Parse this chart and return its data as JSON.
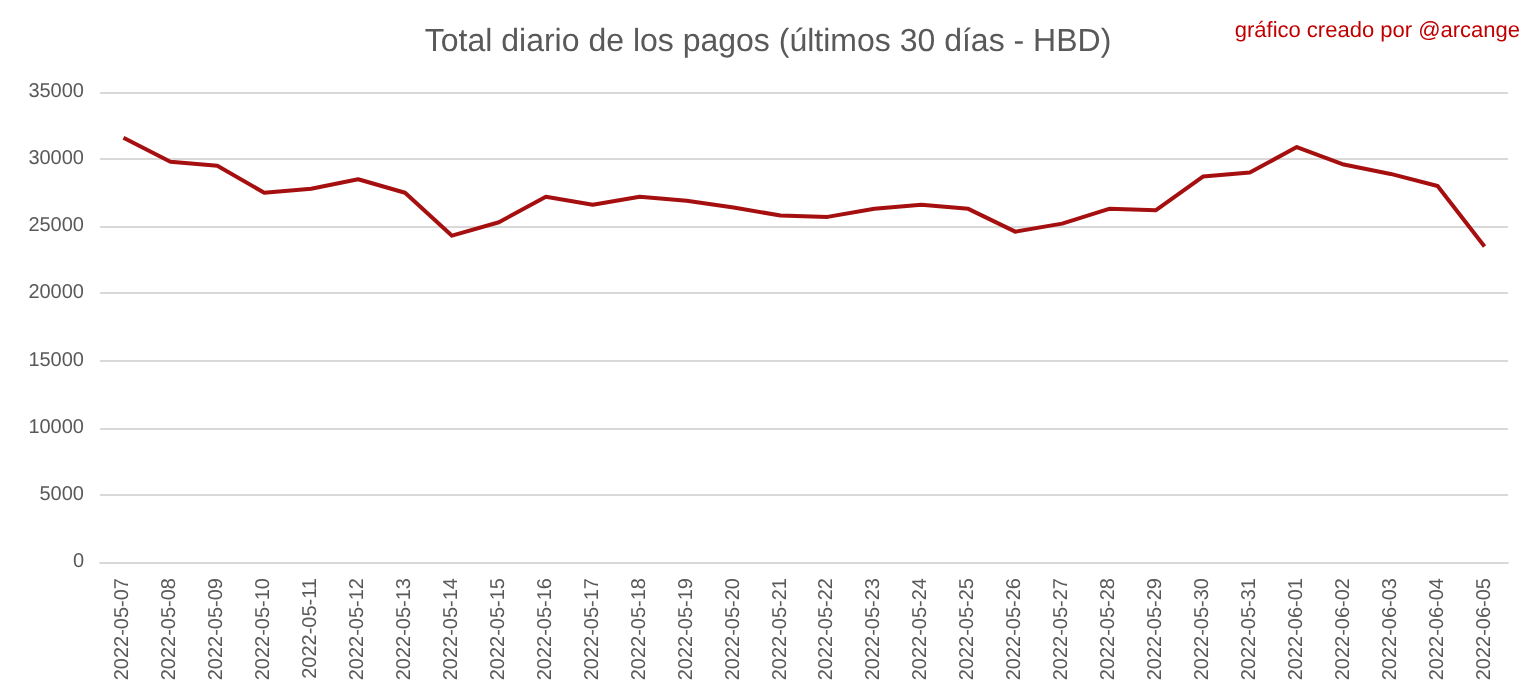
{
  "chart_data": {
    "type": "line",
    "title": "Total diario de los pagos (últimos 30 días - HBD)",
    "annotations": [
      "gráfico creado por @arcange"
    ],
    "categories": [
      "2022-05-07",
      "2022-05-08",
      "2022-05-09",
      "2022-05-10",
      "2022-05-11",
      "2022-05-12",
      "2022-05-13",
      "2022-05-14",
      "2022-05-15",
      "2022-05-16",
      "2022-05-17",
      "2022-05-18",
      "2022-05-19",
      "2022-05-20",
      "2022-05-21",
      "2022-05-22",
      "2022-05-23",
      "2022-05-24",
      "2022-05-25",
      "2022-05-26",
      "2022-05-27",
      "2022-05-28",
      "2022-05-29",
      "2022-05-30",
      "2022-05-31",
      "2022-06-01",
      "2022-06-02",
      "2022-06-03",
      "2022-06-04",
      "2022-06-05"
    ],
    "series": [
      {
        "color": "#a50f0f",
        "values": [
          31600,
          29800,
          29500,
          27500,
          27800,
          28500,
          27500,
          24300,
          25300,
          27200,
          26600,
          27200,
          26900,
          26400,
          25800,
          25700,
          26300,
          26600,
          26300,
          24600,
          25200,
          26300,
          26200,
          28700,
          29000,
          30900,
          29600,
          28900,
          28000,
          23500
        ]
      }
    ],
    "ylim": [
      0,
      35000
    ],
    "yticks": [
      0,
      5000,
      10000,
      15000,
      20000,
      25000,
      30000,
      35000
    ],
    "grid": "y",
    "marker": "none",
    "line_style": "solid"
  }
}
